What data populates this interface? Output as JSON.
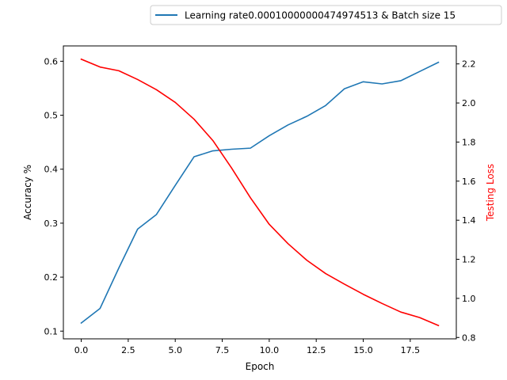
{
  "chart_data": {
    "type": "line",
    "title": "",
    "xlabel": "Epoch",
    "ylabel_left": "Accuracy %",
    "ylabel_right": "Testing Loss",
    "xlim": [
      -0.95,
      19.95
    ],
    "ylim_left": [
      0.0857,
      0.6284
    ],
    "ylim_right": [
      0.793,
      2.292
    ],
    "x_ticks": [
      0,
      2.5,
      5,
      7.5,
      10,
      12.5,
      15,
      17.5
    ],
    "x_tick_labels": [
      "0.0",
      "2.5",
      "5.0",
      "7.5",
      "10.0",
      "12.5",
      "15.0",
      "17.5"
    ],
    "y_left_ticks": [
      0.1,
      0.2,
      0.3,
      0.4,
      0.5,
      0.6
    ],
    "y_left_tick_labels": [
      "0.1",
      "0.2",
      "0.3",
      "0.4",
      "0.5",
      "0.6"
    ],
    "y_right_ticks": [
      0.8,
      1.0,
      1.2,
      1.4,
      1.6,
      1.8,
      2.0,
      2.2
    ],
    "y_right_tick_labels": [
      "0.8",
      "1.0",
      "1.2",
      "1.4",
      "1.6",
      "1.8",
      "2.0",
      "2.2"
    ],
    "grid": false,
    "legend_position": "top-right, outside plot",
    "series": [
      {
        "name": "Learning rate0.00010000000474974513 & Batch size 15",
        "axis": "left",
        "color": "#1f77b4",
        "x": [
          0,
          1,
          2,
          3,
          4,
          5,
          6,
          7,
          8,
          9,
          10,
          11,
          12,
          13,
          14,
          15,
          16,
          17,
          18,
          19
        ],
        "values": [
          0.115,
          0.142,
          0.217,
          0.289,
          0.316,
          0.37,
          0.423,
          0.434,
          0.437,
          0.439,
          0.462,
          0.482,
          0.498,
          0.518,
          0.549,
          0.562,
          0.558,
          0.564,
          0.581,
          0.598
        ]
      },
      {
        "axis": "right",
        "color": "#ff0000",
        "x": [
          0,
          1,
          2,
          3,
          4,
          5,
          6,
          7,
          8,
          9,
          10,
          11,
          12,
          13,
          14,
          15,
          16,
          17,
          18,
          19
        ],
        "values": [
          2.224,
          2.184,
          2.165,
          2.12,
          2.068,
          2.003,
          1.917,
          1.808,
          1.667,
          1.515,
          1.379,
          1.28,
          1.195,
          1.127,
          1.073,
          1.021,
          0.974,
          0.93,
          0.902,
          0.861
        ]
      }
    ]
  }
}
